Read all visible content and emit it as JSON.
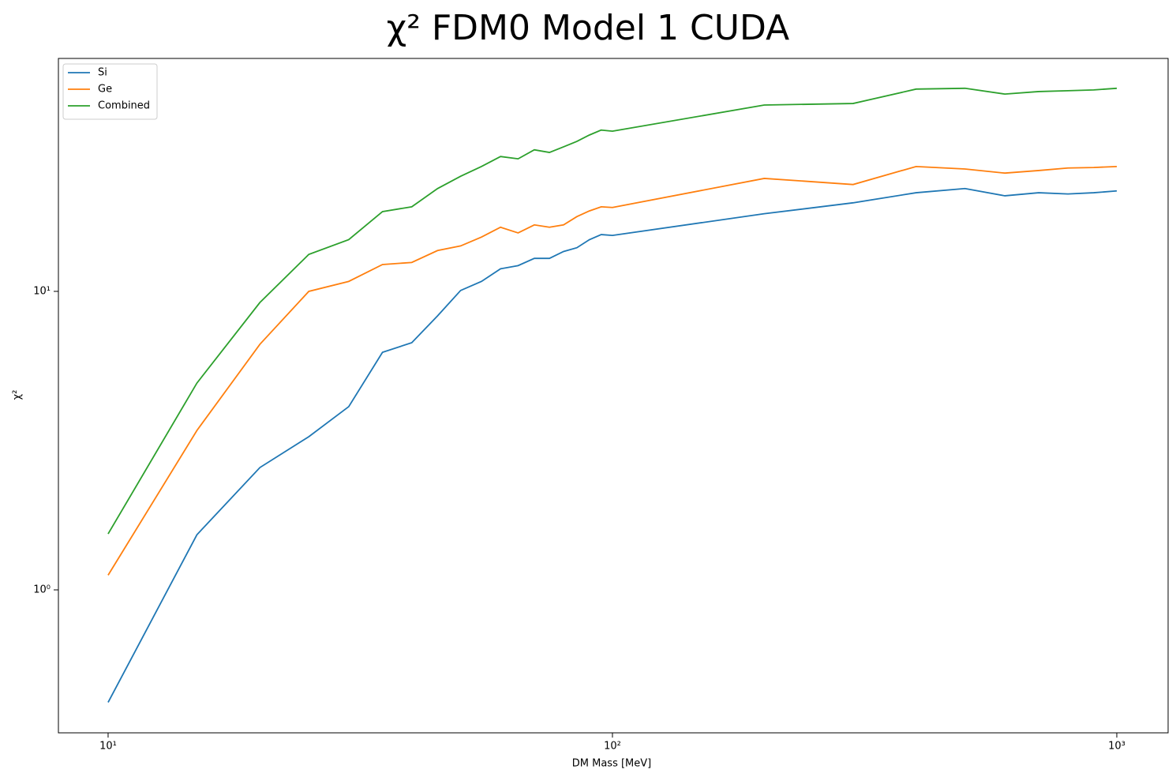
{
  "chart_data": {
    "type": "line",
    "title": "χ² FDM0 Model 1 CUDA",
    "xlabel": "DM Mass [MeV]",
    "ylabel": "χ²",
    "xscale": "log",
    "yscale": "log",
    "legend": "upper left",
    "x": [
      10,
      15,
      20,
      25,
      30,
      35,
      40,
      45,
      50,
      55,
      60,
      65,
      70,
      75,
      80,
      85,
      90,
      95,
      100,
      200,
      300,
      400,
      500,
      600,
      700,
      800,
      900,
      1000
    ],
    "series": [
      {
        "name": "Si",
        "color": "#1f77b4",
        "values": [
          0.42,
          1.53,
          2.57,
          3.26,
          4.11,
          6.25,
          6.73,
          8.28,
          10.07,
          10.8,
          11.9,
          12.2,
          12.9,
          12.9,
          13.6,
          14.0,
          14.9,
          15.5,
          15.4,
          18.2,
          19.8,
          21.4,
          22.1,
          20.9,
          21.4,
          21.2,
          21.4,
          21.7
        ]
      },
      {
        "name": "Ge",
        "color": "#ff7f0e",
        "values": [
          1.12,
          3.42,
          6.65,
          10.0,
          10.8,
          12.3,
          12.5,
          13.7,
          14.2,
          15.2,
          16.4,
          15.7,
          16.7,
          16.4,
          16.7,
          17.8,
          18.6,
          19.2,
          19.1,
          23.9,
          22.8,
          26.2,
          25.7,
          24.9,
          25.4,
          25.9,
          26.0,
          26.2
        ]
      },
      {
        "name": "Combined",
        "color": "#2ca02c",
        "values": [
          1.54,
          4.93,
          9.18,
          13.3,
          14.9,
          18.5,
          19.2,
          22.1,
          24.3,
          26.2,
          28.3,
          27.8,
          29.8,
          29.2,
          30.5,
          31.8,
          33.4,
          34.7,
          34.4,
          42.1,
          42.6,
          47.6,
          47.9,
          45.8,
          46.7,
          47.0,
          47.3,
          47.9
        ]
      }
    ],
    "xlim": [
      7.97,
      1264
    ],
    "ylim": [
      0.332,
      60.3
    ],
    "xticks": [
      {
        "value": 10,
        "label": "10¹"
      },
      {
        "value": 100,
        "label": "10²"
      },
      {
        "value": 1000,
        "label": "10³"
      }
    ],
    "yticks": [
      {
        "value": 1,
        "label": "10⁰"
      },
      {
        "value": 10,
        "label": "10¹"
      }
    ]
  }
}
